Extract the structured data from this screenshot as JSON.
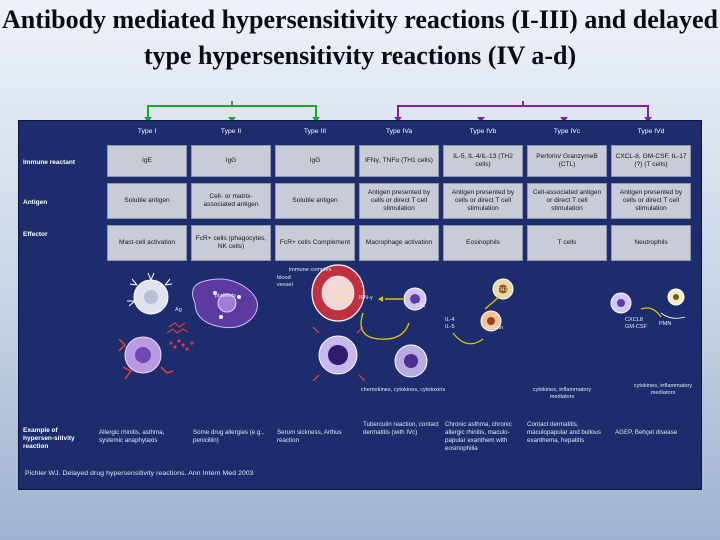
{
  "title": "Antibody mediated hypersensitivity reactions (I-III) and delayed type hypersensitivity reactions (IV a-d)",
  "colors": {
    "panel": "#1c2c6c",
    "cell": "#c8ccd6",
    "bracket_group1": "#1aa72a",
    "bracket_group2": "#8a1f9e"
  },
  "headers": [
    "Type I",
    "Type II",
    "Type III",
    "Type IVa",
    "Type IVb",
    "Type IVc",
    "Type IVd"
  ],
  "row_labels": {
    "immune": "Immune reactant",
    "antigen": "Antigen",
    "effector": "Effector",
    "examples": "Example of hypersen-sitivity reaction"
  },
  "immune_reactant": [
    "IgE",
    "IgG",
    "IgG",
    "IFNγ, TNFα (TH1 cells)",
    "IL-5, IL-4/IL-13 (TH2 cells)",
    "Perforin/ GranzymeB (CTL)",
    "CXCL-8, GM-CSF, IL-17 (?) (T cells)"
  ],
  "antigen": [
    "Soluble antigen",
    "Cell- or matrix-associated antigen",
    "Soluble antigen",
    "Antigen presented by cells or direct T cell stimulation",
    "Antigen presented by cells or direct T cell stimulation",
    "Cell-associated antigen or direct T cell stimulation",
    "Antigen presented by cells or direct T cell stimulation"
  ],
  "effector": [
    "Mast-cell activation",
    "FcR+ cells (phagocytes, NK cells)",
    "FcR+ cells Complement",
    "Macrophage activation",
    "Eosinophils",
    "T cells",
    "Neutrophils"
  ],
  "illustration_labels": {
    "immune_complex": "immune complex",
    "blood_vessel": "blood vessel",
    "platelets": "platelets",
    "ag": "Ag",
    "ifn": "IFN-γ",
    "th1": "TH1",
    "th2": "TH2",
    "il4_il5": "IL-4 IL-5",
    "eotaxin": "eotaxin",
    "cxcl8_gmcsf": "CXCL8 GM-CSF",
    "pmn": "PMN",
    "chemokines": "chemokines, cytokines, cytotoxins",
    "cytokines_mediators": "cytokines, inflammatory mediators",
    "cytokines_mediators_d": "cytokines, inflammatory mediators"
  },
  "examples": [
    "Allergic rhinitis, asthma, systemic anaphylaxis",
    "Some drug allergies (e.g., penicillin)",
    "Serum sickness, Arthus reaction",
    "Tuberculin reaction, contact dermatitis (with IVc)",
    "Chronic asthma, chronic allergic rhinitis, maculo-papular exanthem with eosinophilia",
    "Contact dermatitis, maculopapular and bullous exanthema, hepatitis",
    "AGEP, Behçet disease"
  ],
  "reference": "Pichler WJ. Delayed drug hypersensitivity reactions. Ann Intern Med 2003"
}
